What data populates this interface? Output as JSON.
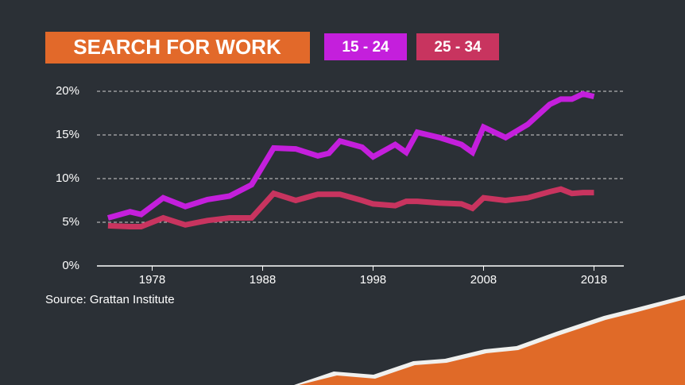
{
  "chart_data": {
    "type": "line",
    "title": "SEARCH FOR WORK",
    "source": "Source: Grattan Institute",
    "x": [
      1974,
      1976,
      1977,
      1979,
      1981,
      1983,
      1985,
      1987,
      1989,
      1991,
      1993,
      1994,
      1995,
      1997,
      1998,
      2000,
      2001,
      2002,
      2004,
      2006,
      2007,
      2008,
      2010,
      2012,
      2014,
      2015,
      2016,
      2017,
      2018
    ],
    "series": [
      {
        "name": "15 - 24",
        "color": "#c41fdc",
        "values": [
          5.5,
          6.2,
          5.9,
          7.8,
          6.8,
          7.6,
          8.0,
          9.3,
          13.5,
          13.4,
          12.6,
          12.9,
          14.3,
          13.6,
          12.5,
          13.9,
          13.0,
          15.3,
          14.7,
          13.9,
          13.0,
          15.9,
          14.7,
          16.2,
          18.5,
          19.1,
          19.1,
          19.7,
          19.4
        ]
      },
      {
        "name": "25 - 34",
        "color": "#c8345f",
        "values": [
          4.6,
          4.5,
          4.5,
          5.5,
          4.7,
          5.2,
          5.5,
          5.5,
          8.3,
          7.5,
          8.2,
          8.2,
          8.2,
          7.5,
          7.1,
          6.9,
          7.4,
          7.4,
          7.2,
          7.1,
          6.6,
          7.8,
          7.5,
          7.8,
          8.5,
          8.8,
          8.3,
          8.4,
          8.4
        ]
      }
    ],
    "xlim": [
      1973,
      2020.7
    ],
    "xticks": [
      1978,
      1988,
      1998,
      2008,
      2018
    ],
    "ylim": [
      0,
      20
    ],
    "yticks": [
      {
        "value": 0,
        "label": "0%"
      },
      {
        "value": 5,
        "label": "5%"
      },
      {
        "value": 10,
        "label": "10%"
      },
      {
        "value": 15,
        "label": "15%"
      },
      {
        "value": 20,
        "label": "20%"
      }
    ],
    "grid": true
  }
}
